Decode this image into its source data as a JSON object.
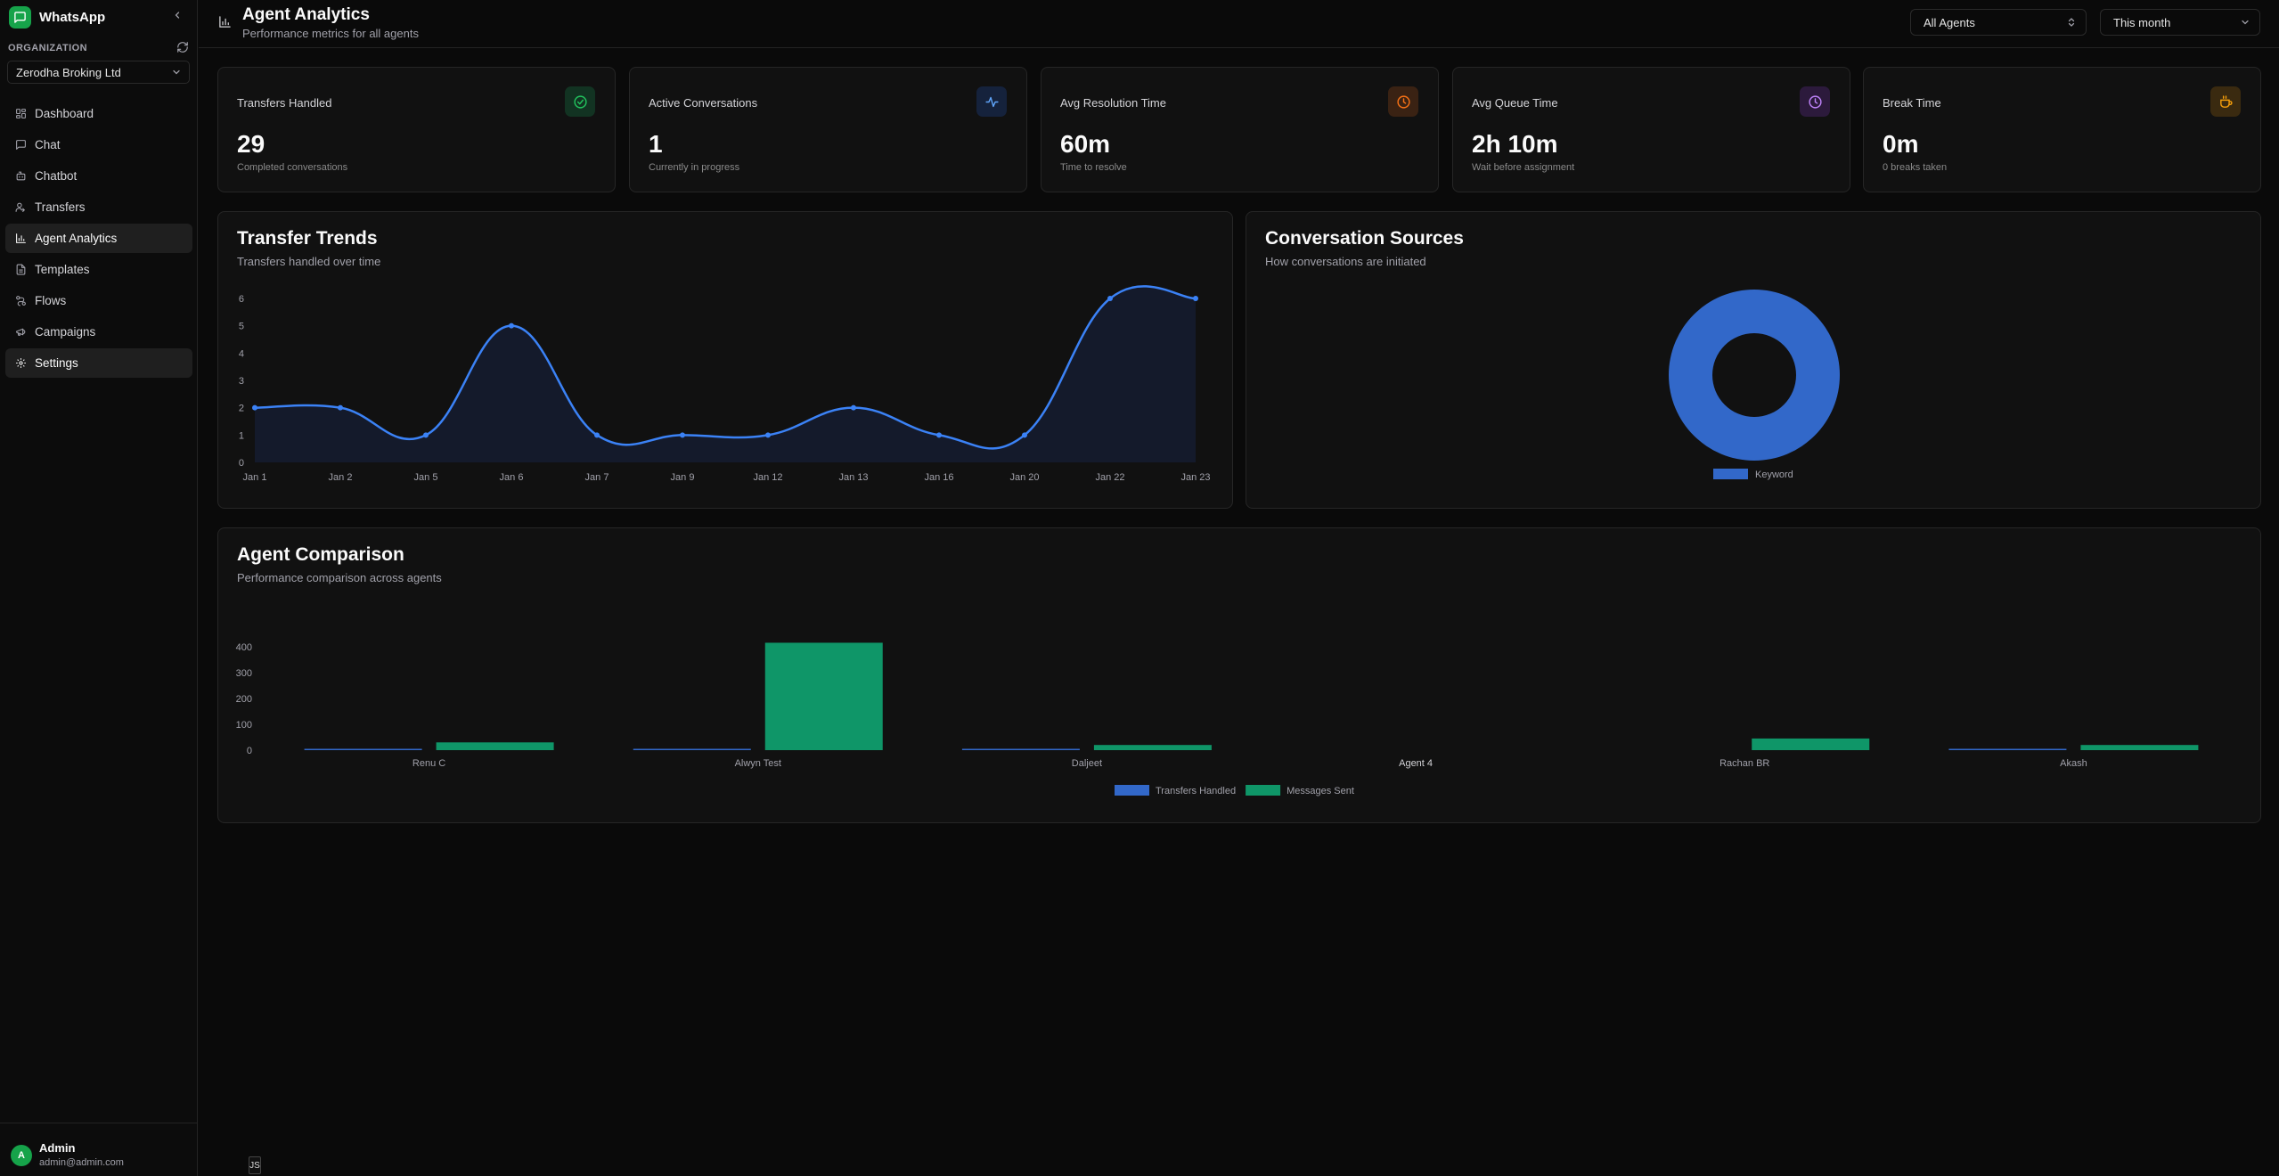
{
  "app": {
    "name": "WhatsApp"
  },
  "sidebar": {
    "org_label": "ORGANIZATION",
    "org_name": "Zerodha Broking Ltd",
    "items": [
      {
        "label": "Dashboard",
        "icon": "dashboard-icon"
      },
      {
        "label": "Chat",
        "icon": "chat-icon"
      },
      {
        "label": "Chatbot",
        "icon": "bot-icon"
      },
      {
        "label": "Transfers",
        "icon": "user-transfer-icon"
      },
      {
        "label": "Agent Analytics",
        "icon": "bar-chart-icon",
        "active": true
      },
      {
        "label": "Templates",
        "icon": "file-icon"
      },
      {
        "label": "Flows",
        "icon": "flow-icon"
      },
      {
        "label": "Campaigns",
        "icon": "megaphone-icon"
      },
      {
        "label": "Settings",
        "icon": "gear-icon"
      }
    ],
    "user": {
      "initial": "A",
      "name": "Admin",
      "email": "admin@admin.com"
    }
  },
  "header": {
    "title": "Agent Analytics",
    "subtitle": "Performance metrics for all agents",
    "agent_filter": "All Agents",
    "period_filter": "This month"
  },
  "stats": [
    {
      "label": "Transfers Handled",
      "value": "29",
      "desc": "Completed conversations",
      "icon": "check-circle-icon",
      "color": "#22c55e",
      "bg": "#123322"
    },
    {
      "label": "Active Conversations",
      "value": "1",
      "desc": "Currently in progress",
      "icon": "activity-icon",
      "color": "#60a5fa",
      "bg": "#15223c"
    },
    {
      "label": "Avg Resolution Time",
      "value": "60m",
      "desc": "Time to resolve",
      "icon": "clock-icon",
      "color": "#f97316",
      "bg": "#3a2213"
    },
    {
      "label": "Avg Queue Time",
      "value": "2h 10m",
      "desc": "Wait before assignment",
      "icon": "clock-icon",
      "color": "#c084fc",
      "bg": "#2c1a3c"
    },
    {
      "label": "Break Time",
      "value": "0m",
      "desc": "0 breaks taken",
      "icon": "coffee-icon",
      "color": "#f59e0b",
      "bg": "#3a2a10"
    }
  ],
  "trends": {
    "title": "Transfer Trends",
    "subtitle": "Transfers handled over time"
  },
  "sources": {
    "title": "Conversation Sources",
    "subtitle": "How conversations are initiated"
  },
  "comparison": {
    "title": "Agent Comparison",
    "subtitle": "Performance comparison across agents"
  },
  "footer_tag": "JS",
  "chart_data": [
    {
      "type": "area",
      "title": "Transfer Trends",
      "categories": [
        "Jan 1",
        "Jan 2",
        "Jan 5",
        "Jan 6",
        "Jan 7",
        "Jan 9",
        "Jan 12",
        "Jan 13",
        "Jan 16",
        "Jan 20",
        "Jan 22",
        "Jan 23"
      ],
      "values": [
        2,
        2,
        1,
        5,
        1,
        1,
        1,
        2,
        1,
        1,
        6,
        6
      ],
      "ylim": [
        0,
        6
      ],
      "yticks": [
        0,
        1,
        2,
        3,
        4,
        5,
        6
      ],
      "color": "#3b82f6"
    },
    {
      "type": "pie",
      "title": "Conversation Sources",
      "labels": [
        "Keyword"
      ],
      "values": [
        100
      ],
      "colors": [
        "#3268c9"
      ]
    },
    {
      "type": "bar",
      "title": "Agent Comparison",
      "categories": [
        "Renu C",
        "Alwyn Test",
        "Daljeet",
        "Agent 4",
        "Rachan BR",
        "Akash"
      ],
      "series": [
        {
          "name": "Transfers Handled",
          "values": [
            1,
            4,
            1,
            0,
            0,
            1
          ],
          "color": "#3268c9"
        },
        {
          "name": "Messages Sent",
          "values": [
            30,
            415,
            20,
            0,
            45,
            20
          ],
          "color": "#0f9668"
        }
      ],
      "ylim": [
        0,
        420
      ],
      "yticks": [
        0,
        100,
        200,
        300,
        400
      ]
    }
  ]
}
